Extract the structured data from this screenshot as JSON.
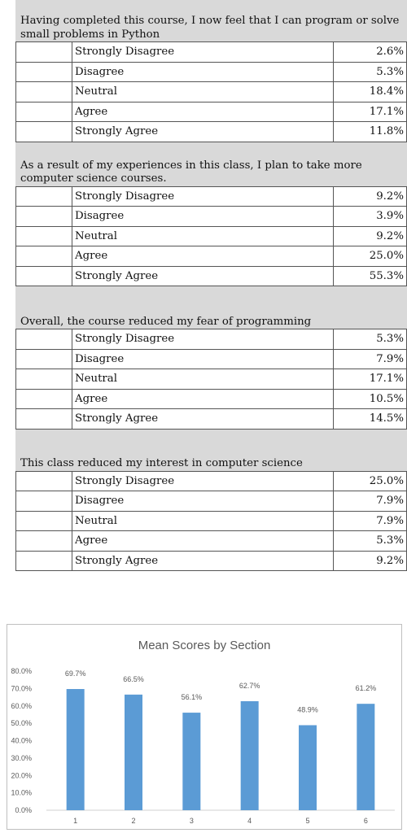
{
  "sections": [
    {
      "question": "Having completed this course, I now feel that I can program or solve small problems in Python",
      "rows": [
        {
          "label": "Strongly Disagree",
          "value": "2.6%"
        },
        {
          "label": "Disagree",
          "value": "5.3%"
        },
        {
          "label": "Neutral",
          "value": "18.4%"
        },
        {
          "label": "Agree",
          "value": "17.1%"
        },
        {
          "label": "Strongly Agree",
          "value": "11.8%"
        }
      ]
    },
    {
      "question": "As a result of my experiences in this class, I plan to take more computer science courses.",
      "rows": [
        {
          "label": "Strongly Disagree",
          "value": "9.2%"
        },
        {
          "label": "Disagree",
          "value": "3.9%"
        },
        {
          "label": "Neutral",
          "value": "9.2%"
        },
        {
          "label": "Agree",
          "value": "25.0%"
        },
        {
          "label": "Strongly Agree",
          "value": "55.3%"
        }
      ]
    },
    {
      "question": "Overall, the course reduced my fear of programming",
      "rows": [
        {
          "label": "Strongly Disagree",
          "value": "5.3%"
        },
        {
          "label": "Disagree",
          "value": "7.9%"
        },
        {
          "label": "Neutral",
          "value": "17.1%"
        },
        {
          "label": "Agree",
          "value": "10.5%"
        },
        {
          "label": "Strongly Agree",
          "value": "14.5%"
        }
      ]
    },
    {
      "question": "This class reduced my interest in computer science",
      "rows": [
        {
          "label": "Strongly Disagree",
          "value": "25.0%"
        },
        {
          "label": "Disagree",
          "value": "7.9%"
        },
        {
          "label": "Neutral",
          "value": "7.9%"
        },
        {
          "label": "Agree",
          "value": "5.3%"
        },
        {
          "label": "Strongly Agree",
          "value": "9.2%"
        }
      ]
    }
  ],
  "chart_data": {
    "type": "bar",
    "title": "Mean Scores by Section",
    "categories": [
      "1",
      "2",
      "3",
      "4",
      "5",
      "6"
    ],
    "values": [
      69.7,
      66.5,
      56.1,
      62.7,
      48.9,
      61.2
    ],
    "data_labels": [
      "69.7%",
      "66.5%",
      "56.1%",
      "62.7%",
      "48.9%",
      "61.2%"
    ],
    "y_ticks": [
      "0.0%",
      "10.0%",
      "20.0%",
      "30.0%",
      "40.0%",
      "50.0%",
      "60.0%",
      "70.0%",
      "80.0%"
    ],
    "ylim": [
      0,
      80
    ],
    "grid": false,
    "bar_color": "#5b9bd5"
  }
}
